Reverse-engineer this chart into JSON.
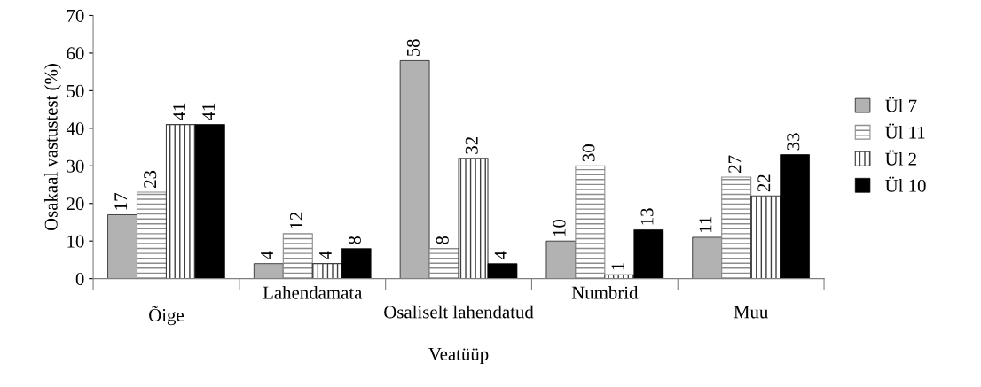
{
  "chart_data": {
    "type": "bar",
    "xlabel": "Veatüüp",
    "ylabel": "Osakaal vastustest (%)",
    "categories": [
      "Õige",
      "Lahendamata",
      "Osaliselt lahendatud",
      "Numbrid",
      "Muu"
    ],
    "series": [
      {
        "name": "Ül 7",
        "color": "#b2b2b2",
        "values": [
          17,
          4,
          58,
          10,
          11
        ]
      },
      {
        "name": "Ül 11",
        "color": "#8c8c8c",
        "values": [
          23,
          12,
          8,
          30,
          27
        ]
      },
      {
        "name": "Ül 2",
        "color": "#404040",
        "values": [
          41,
          4,
          32,
          1,
          22
        ]
      },
      {
        "name": "Ül 10",
        "color": "#000000",
        "values": [
          41,
          8,
          4,
          13,
          33
        ]
      }
    ],
    "ylim": [
      0,
      70
    ],
    "yticks": [
      0,
      10,
      20,
      30,
      40,
      50,
      60,
      70
    ],
    "data_labels": true,
    "grid": false,
    "legend": "right"
  }
}
